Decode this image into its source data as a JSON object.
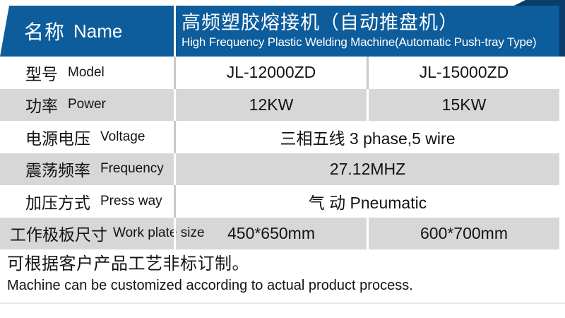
{
  "colors": {
    "blue": "#0d5c9b",
    "navy": "#0b3d6b",
    "row_gray": "#d7d7d7",
    "divider_on_light": "#c9c9c9"
  },
  "header": {
    "name_zh": "名称",
    "name_en": "Name",
    "title_zh": "高频塑胶熔接机（自动推盘机）",
    "title_en": "High Frequency Plastic Welding Machine(Automatic Push-tray Type)"
  },
  "table": {
    "rows": [
      {
        "label_zh": "型号",
        "label_en": "Model",
        "values": [
          "JL-12000ZD",
          "JL-15000ZD"
        ]
      },
      {
        "label_zh": "功率",
        "label_en": "Power",
        "values": [
          "12KW",
          "15KW"
        ]
      },
      {
        "label_zh": "电源电压",
        "label_en": "Voltage",
        "values": [
          "三相五线 3 phase,5 wire"
        ]
      },
      {
        "label_zh": "震荡频率",
        "label_en": "Frequency",
        "values": [
          "27.12MHZ"
        ]
      },
      {
        "label_zh": "加压方式",
        "label_en": "Press way",
        "values": [
          "气 动 Pneumatic"
        ]
      },
      {
        "label_zh": "工作极板尺寸",
        "label_en": "Work plate size",
        "values": [
          "450*650mm",
          "600*700mm"
        ]
      }
    ]
  },
  "footer": {
    "note_zh": "可根据客户产品工艺非标订制。",
    "note_en": "Machine can be customized according to actual product process."
  }
}
